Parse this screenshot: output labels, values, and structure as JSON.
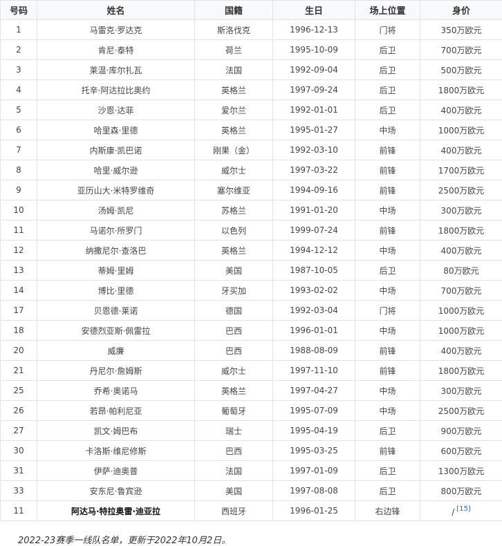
{
  "headers": [
    "号码",
    "姓名",
    "国籍",
    "生日",
    "场上位置",
    "身价"
  ],
  "rows": [
    {
      "no": "1",
      "name": "马雷克·罗达克",
      "nation": "斯洛伐克",
      "birth": "1996-12-13",
      "pos": "门将",
      "value": "350万欧元"
    },
    {
      "no": "2",
      "name": "肯尼·泰特",
      "nation": "荷兰",
      "birth": "1995-10-09",
      "pos": "后卫",
      "value": "700万欧元"
    },
    {
      "no": "3",
      "name": "莱温·库尔扎瓦",
      "nation": "法国",
      "birth": "1992-09-04",
      "pos": "后卫",
      "value": "500万欧元"
    },
    {
      "no": "4",
      "name": "托辛·阿达拉比奥约",
      "nation": "英格兰",
      "birth": "1997-09-24",
      "pos": "后卫",
      "value": "1800万欧元"
    },
    {
      "no": "5",
      "name": "沙恩·达菲",
      "nation": "爱尔兰",
      "birth": "1992-01-01",
      "pos": "后卫",
      "value": "400万欧元"
    },
    {
      "no": "6",
      "name": "哈里森·里德",
      "nation": "英格兰",
      "birth": "1995-01-27",
      "pos": "中场",
      "value": "1000万欧元"
    },
    {
      "no": "7",
      "name": "内斯康·凯巴诺",
      "nation": "刚果（金）",
      "birth": "1992-03-10",
      "pos": "前锋",
      "value": "400万欧元"
    },
    {
      "no": "8",
      "name": "哈里·威尔逊",
      "nation": "威尔士",
      "birth": "1997-03-22",
      "pos": "前锋",
      "value": "1700万欧元"
    },
    {
      "no": "9",
      "name": "亚历山大·米特罗维奇",
      "nation": "塞尔维亚",
      "birth": "1994-09-16",
      "pos": "前锋",
      "value": "2500万欧元"
    },
    {
      "no": "10",
      "name": "汤姆·凯尼",
      "nation": "苏格兰",
      "birth": "1991-01-20",
      "pos": "中场",
      "value": "300万欧元"
    },
    {
      "no": "11",
      "name": "马诺尔·所罗门",
      "nation": "以色列",
      "birth": "1999-07-24",
      "pos": "前锋",
      "value": "1800万欧元"
    },
    {
      "no": "12",
      "name": "纳撒尼尔·查洛巴",
      "nation": "英格兰",
      "birth": "1994-12-12",
      "pos": "中场",
      "value": "400万欧元"
    },
    {
      "no": "13",
      "name": "蒂姆·里姆",
      "nation": "美国",
      "birth": "1987-10-05",
      "pos": "后卫",
      "value": "80万欧元"
    },
    {
      "no": "14",
      "name": "博比·里德",
      "nation": "牙买加",
      "birth": "1993-02-02",
      "pos": "中场",
      "value": "700万欧元"
    },
    {
      "no": "17",
      "name": "贝恩德·莱诺",
      "nation": "德国",
      "birth": "1992-03-04",
      "pos": "门将",
      "value": "1000万欧元"
    },
    {
      "no": "18",
      "name": "安德烈亚斯·佩雷拉",
      "nation": "巴西",
      "birth": "1996-01-01",
      "pos": "中场",
      "value": "1000万欧元"
    },
    {
      "no": "20",
      "name": "威廉",
      "nation": "巴西",
      "birth": "1988-08-09",
      "pos": "前锋",
      "value": "400万欧元"
    },
    {
      "no": "21",
      "name": "丹尼尔·詹姆斯",
      "nation": "威尔士",
      "birth": "1997-11-10",
      "pos": "前锋",
      "value": "1800万欧元"
    },
    {
      "no": "25",
      "name": "乔希·奥诺马",
      "nation": "英格兰",
      "birth": "1997-04-27",
      "pos": "中场",
      "value": "300万欧元"
    },
    {
      "no": "26",
      "name": "若昂·帕利尼亚",
      "nation": "葡萄牙",
      "birth": "1995-07-09",
      "pos": "中场",
      "value": "2500万欧元"
    },
    {
      "no": "27",
      "name": "凯文·姆巴布",
      "nation": "瑞士",
      "birth": "1995-04-19",
      "pos": "后卫",
      "value": "900万欧元"
    },
    {
      "no": "30",
      "name": "卡洛斯·维尼修斯",
      "nation": "巴西",
      "birth": "1995-03-25",
      "pos": "前锋",
      "value": "600万欧元"
    },
    {
      "no": "31",
      "name": "伊萨·迪奥普",
      "nation": "法国",
      "birth": "1997-01-09",
      "pos": "后卫",
      "value": "1300万欧元"
    },
    {
      "no": "33",
      "name": "安东尼·鲁宾逊",
      "nation": "美国",
      "birth": "1997-08-08",
      "pos": "后卫",
      "value": "800万欧元"
    },
    {
      "no": "11",
      "name": "阿达马·特拉奥雷·迪亚拉",
      "nation": "西班牙",
      "birth": "1996-01-25",
      "pos": "右边锋",
      "value": "/",
      "ref": "[15]"
    }
  ],
  "caption": "2022-23赛季一线队名单，更新于2022年10月2日。"
}
